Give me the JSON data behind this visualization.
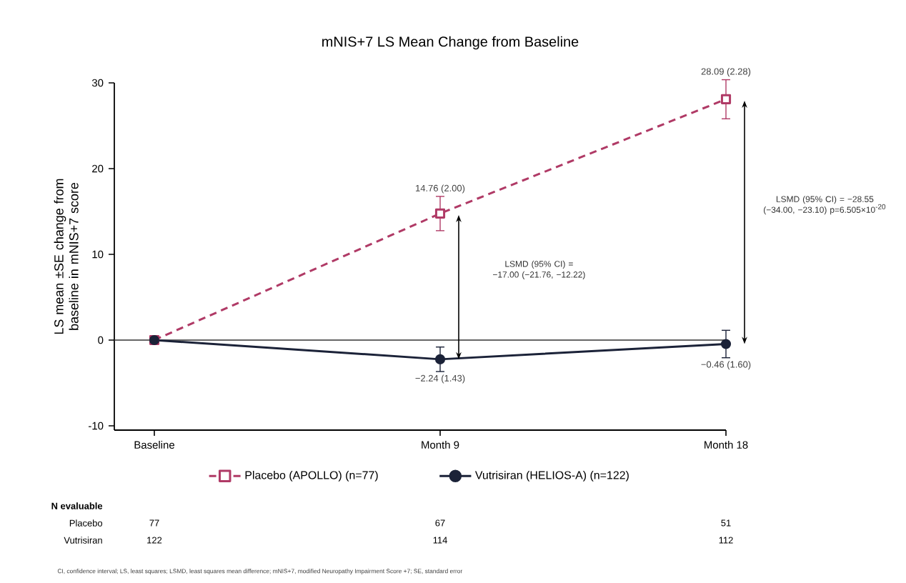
{
  "chart_data": {
    "type": "line",
    "title": "mNIS+7 LS Mean Change from Baseline",
    "ylabel": "LS mean ±SE change from baseline in mNIS+7 score",
    "categories": [
      "Baseline",
      "Month 9",
      "Month 18"
    ],
    "series": [
      {
        "name": "Placebo (APOLLO) (n=77)",
        "color": "#b03a66",
        "values": [
          0,
          14.76,
          28.09
        ],
        "errors": [
          null,
          2.0,
          2.28
        ],
        "value_labels": [
          null,
          "14.76 (2.00)",
          "28.09 (2.28)"
        ],
        "marker": "square",
        "line_style": "dashed"
      },
      {
        "name": "Vutrisiran (HELIOS-A) (n=122)",
        "color": "#1b2238",
        "values": [
          0,
          -2.24,
          -0.46
        ],
        "errors": [
          null,
          1.43,
          1.6
        ],
        "value_labels": [
          null,
          "−2.24 (1.43)",
          "−0.46 (1.60)"
        ],
        "marker": "circle",
        "line_style": "solid"
      }
    ],
    "ylim": [
      -10.5,
      30
    ],
    "yticks": [
      -10,
      0,
      10,
      20,
      30
    ],
    "ref_lines": [
      {
        "axis": "y",
        "value": 0,
        "color": "#333333"
      }
    ],
    "legend": "bottom",
    "annotations": [
      "LSMD (95% CI) = −17.00 (−21.76, −12.22)",
      "LSMD (95% CI) = −28.55 (−34.00, −23.10) p=6.505×10$^{-20}$",
      "N evaluable",
      "Placebo",
      "77",
      "67",
      "51",
      "Vutrisiran",
      "122",
      "114",
      "112",
      "CI, confidence interval; LS, least squares; LSMD, least squares mean difference; mNIS+7, modified Neuropathy Impairment Score +7; SE, standard error"
    ]
  }
}
